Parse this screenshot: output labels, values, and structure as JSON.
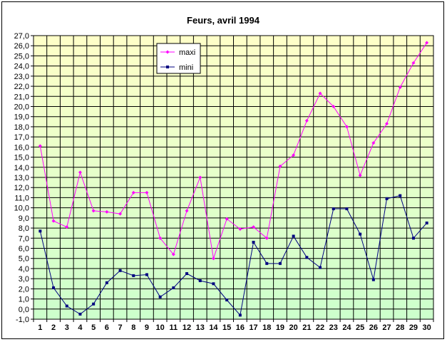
{
  "chart_data": {
    "type": "line",
    "title": "Feurs, avril 1994",
    "xlabel": "",
    "ylabel": "",
    "x": [
      1,
      2,
      3,
      4,
      5,
      6,
      7,
      8,
      9,
      10,
      11,
      12,
      13,
      14,
      15,
      16,
      17,
      18,
      19,
      20,
      21,
      22,
      23,
      24,
      25,
      26,
      27,
      28,
      29,
      30
    ],
    "xtick_labels": [
      "1",
      "2",
      "3",
      "4",
      "5",
      "6",
      "7",
      "8",
      "9",
      "10",
      "11",
      "12",
      "13",
      "14",
      "15",
      "16",
      "17",
      "18",
      "19",
      "20",
      "21",
      "22",
      "23",
      "24",
      "25",
      "26",
      "27",
      "28",
      "29",
      "30"
    ],
    "ylim": [
      -1.0,
      27.0
    ],
    "ytick_labels": [
      "-1,0",
      "0,0",
      "1,0",
      "2,0",
      "3,0",
      "4,0",
      "5,0",
      "6,0",
      "7,0",
      "8,0",
      "9,0",
      "10,0",
      "11,0",
      "12,0",
      "13,0",
      "14,0",
      "15,0",
      "16,0",
      "17,0",
      "18,0",
      "19,0",
      "20,0",
      "21,0",
      "22,0",
      "23,0",
      "24,0",
      "25,0",
      "26,0",
      "27,0"
    ],
    "grid": true,
    "legend_position": "top-center",
    "background_gradient": [
      "#ffffc8",
      "#ccffcc"
    ],
    "series": [
      {
        "name": "maxi",
        "color": "#ff00ff",
        "marker": "diamond",
        "values": [
          16.1,
          8.7,
          8.1,
          13.5,
          9.7,
          9.6,
          9.4,
          11.5,
          11.5,
          7.0,
          5.4,
          9.7,
          13.0,
          5.0,
          8.9,
          7.9,
          8.1,
          7.0,
          14.1,
          15.2,
          18.6,
          21.3,
          20.0,
          18.0,
          13.2,
          16.4,
          18.3,
          21.9,
          24.3,
          26.3
        ]
      },
      {
        "name": "mini",
        "color": "#000080",
        "marker": "square",
        "values": [
          7.7,
          2.1,
          0.3,
          -0.5,
          0.5,
          2.6,
          3.8,
          3.3,
          3.4,
          1.2,
          2.1,
          3.5,
          2.8,
          2.5,
          0.9,
          -0.6,
          6.6,
          4.5,
          4.5,
          7.2,
          5.1,
          4.1,
          9.9,
          9.9,
          7.4,
          2.9,
          10.9,
          11.2,
          7.0,
          8.5
        ]
      }
    ]
  }
}
